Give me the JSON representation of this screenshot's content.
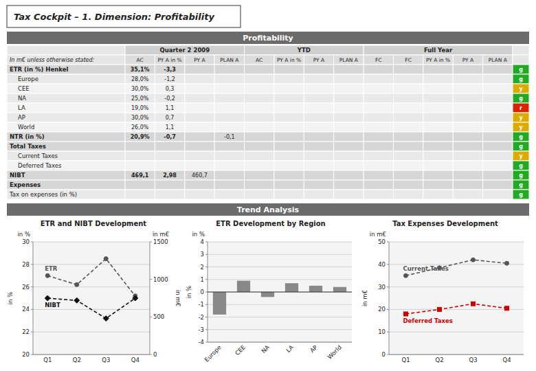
{
  "title": "Tax Cockpit – 1. Dimension: Profitability",
  "section_titles": [
    "Profitability",
    "Trend Analysis"
  ],
  "chart_data": [
    {
      "type": "table",
      "row_label_header": "In m€ unless otherwise stated:",
      "col_groups": [
        {
          "label": "Quarter 2 2009",
          "span": 4
        },
        {
          "label": "YTD",
          "span": 4
        },
        {
          "label": "Full Year",
          "span": 5
        }
      ],
      "col_headers": [
        "AC",
        "PY A in %",
        "PY A",
        "PLAN A",
        "AC",
        "PY A in %",
        "PY A",
        "PLAN A",
        "FC",
        "FC",
        "PY A in %",
        "PY A",
        "PLAN A"
      ],
      "rows": [
        {
          "label": "ETR (in %) Henkel",
          "bold": true,
          "indent": 0,
          "cells": [
            "35,1%",
            "-3,3",
            null,
            null,
            null,
            null,
            null,
            null,
            null,
            null,
            null,
            null,
            null
          ],
          "status": "g",
          "color": "#22aa22"
        },
        {
          "label": "Europe",
          "bold": false,
          "indent": 1,
          "cells": [
            "28,0%",
            "-1,2",
            null,
            null,
            null,
            null,
            null,
            null,
            null,
            null,
            null,
            null,
            null
          ],
          "status": "g",
          "color": "#22aa22"
        },
        {
          "label": "CEE",
          "bold": false,
          "indent": 1,
          "cells": [
            "30,0%",
            "0,3",
            null,
            null,
            null,
            null,
            null,
            null,
            null,
            null,
            null,
            null,
            null
          ],
          "status": "y",
          "color": "#ddaa00"
        },
        {
          "label": "NA",
          "bold": false,
          "indent": 1,
          "cells": [
            "25,0%",
            "-0,2",
            null,
            null,
            null,
            null,
            null,
            null,
            null,
            null,
            null,
            null,
            null
          ],
          "status": "g",
          "color": "#22aa22"
        },
        {
          "label": "LA",
          "bold": false,
          "indent": 1,
          "cells": [
            "19,0%",
            "1,1",
            null,
            null,
            null,
            null,
            null,
            null,
            null,
            null,
            null,
            null,
            null
          ],
          "status": "r",
          "color": "#dd2200"
        },
        {
          "label": "AP",
          "bold": false,
          "indent": 1,
          "cells": [
            "30,0%",
            "0,7",
            null,
            null,
            null,
            null,
            null,
            null,
            null,
            null,
            null,
            null,
            null
          ],
          "status": "y",
          "color": "#ddaa00"
        },
        {
          "label": "World",
          "bold": false,
          "indent": 1,
          "cells": [
            "26,0%",
            "1,1",
            null,
            null,
            null,
            null,
            null,
            null,
            null,
            null,
            null,
            null,
            null
          ],
          "status": "y",
          "color": "#ddaa00"
        },
        {
          "label": "NTR (in %)",
          "bold": true,
          "indent": 0,
          "cells": [
            "20,9%",
            "-0,7",
            null,
            "-0,1",
            null,
            null,
            null,
            null,
            null,
            null,
            null,
            null,
            null
          ],
          "status": "g",
          "color": "#22aa22"
        },
        {
          "label": "Total Taxes",
          "bold": true,
          "indent": 0,
          "cells": [
            null,
            null,
            null,
            null,
            null,
            null,
            null,
            null,
            null,
            null,
            null,
            null,
            null
          ],
          "status": "g",
          "color": "#22aa22"
        },
        {
          "label": "Current Taxes",
          "bold": false,
          "indent": 1,
          "cells": [
            null,
            null,
            null,
            null,
            null,
            null,
            null,
            null,
            null,
            null,
            null,
            null,
            null
          ],
          "status": "y",
          "color": "#ddaa00"
        },
        {
          "label": "Deferred Taxes",
          "bold": false,
          "indent": 1,
          "cells": [
            null,
            null,
            null,
            null,
            null,
            null,
            null,
            null,
            null,
            null,
            null,
            null,
            null
          ],
          "status": "g",
          "color": "#22aa22"
        },
        {
          "label": "NIBT",
          "bold": true,
          "indent": 0,
          "cells": [
            "469,1",
            "2,98",
            "460,7",
            null,
            null,
            null,
            null,
            null,
            null,
            null,
            null,
            null,
            null
          ],
          "status": "g",
          "color": "#22aa22"
        },
        {
          "label": "Expenses",
          "bold": true,
          "indent": 0,
          "cells": [
            null,
            null,
            null,
            null,
            null,
            null,
            null,
            null,
            null,
            null,
            null,
            null,
            null
          ],
          "status": "g",
          "color": "#22aa22"
        },
        {
          "label": "Tax on expenses (in %)",
          "bold": false,
          "indent": 0,
          "cells": [
            null,
            null,
            null,
            null,
            null,
            null,
            null,
            null,
            null,
            null,
            null,
            null,
            null
          ],
          "status": "g",
          "color": "#22aa22"
        }
      ]
    },
    {
      "type": "line",
      "title": "ETR and NIBT Development",
      "ylabel": "in %",
      "y2label": "in m€",
      "annotations": [
        "in %",
        "in m€"
      ],
      "categories": [
        "Q1",
        "Q2",
        "Q3",
        "Q4"
      ],
      "series": [
        {
          "name": "ETR",
          "color": "#555555",
          "marker": "circle",
          "line_style": "dashed",
          "values": [
            27.0,
            26.2,
            28.5,
            25.2
          ]
        },
        {
          "name": "NIBT",
          "color": "#111111",
          "marker": "diamond",
          "line_style": "dashed",
          "values": [
            25.0,
            24.8,
            23.2,
            25.0
          ]
        }
      ],
      "ylim": [
        20,
        30
      ],
      "yticks": [
        20,
        22,
        24,
        26,
        28,
        30
      ],
      "y2lim": [
        0,
        1500
      ],
      "y2ticks": [
        0,
        500,
        1000,
        1500
      ],
      "grid": true
    },
    {
      "type": "bar",
      "title": "ETR Development by Region",
      "ylabel": "in %",
      "annotations": [
        "in %"
      ],
      "categories": [
        "Europe",
        "CEE",
        "NA",
        "LA",
        "AP",
        "World"
      ],
      "values": [
        -1.8,
        0.9,
        -0.4,
        0.7,
        0.5,
        0.4
      ],
      "color": "#888888",
      "ylim": [
        -4,
        4
      ],
      "yticks": [
        -4,
        -3,
        -2,
        -1,
        0,
        1,
        2,
        3,
        4
      ],
      "grid": true
    },
    {
      "type": "line",
      "title": "Tax Expenses Development",
      "ylabel": "in m€",
      "annotations": [
        "in m€"
      ],
      "categories": [
        "Q1",
        "Q2",
        "Q3",
        "Q4"
      ],
      "series": [
        {
          "name": "Current Taxes",
          "color": "#555555",
          "marker": "circle",
          "line_style": "dashed",
          "values": [
            35.0,
            38.5,
            42.0,
            40.5
          ]
        },
        {
          "name": "Deferred Taxes",
          "color": "#cc0000",
          "marker": "square",
          "line_style": "dashed",
          "values": [
            18.0,
            20.0,
            22.5,
            20.5
          ]
        }
      ],
      "ylim": [
        0,
        50
      ],
      "yticks": [
        0,
        10,
        20,
        30,
        40,
        50
      ],
      "grid": true
    }
  ]
}
